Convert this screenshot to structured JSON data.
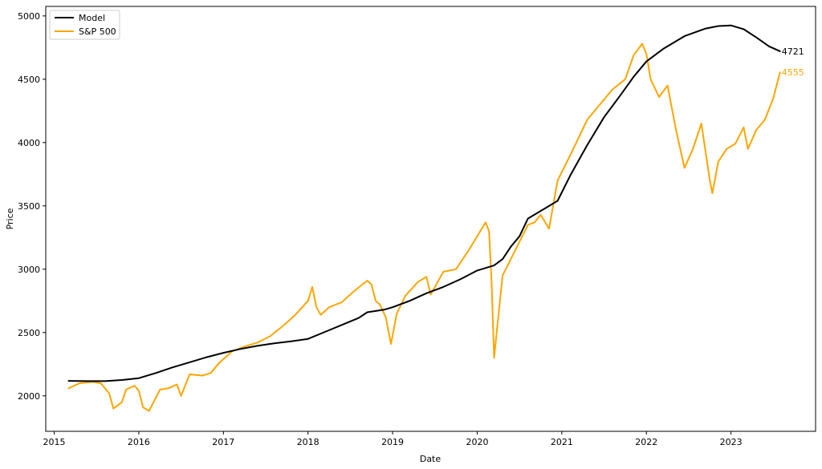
{
  "chart_data": {
    "type": "line",
    "xlabel": "Date",
    "ylabel": "Price",
    "xlim": [
      2014.9,
      2024.0
    ],
    "ylim": [
      1720,
      5075
    ],
    "grid": false,
    "legend_position": "top-left",
    "x_ticks": [
      2015,
      2016,
      2017,
      2018,
      2019,
      2020,
      2021,
      2022,
      2023
    ],
    "x_tick_labels": [
      "2015",
      "2016",
      "2017",
      "2018",
      "2019",
      "2020",
      "2021",
      "2022",
      "2023"
    ],
    "y_ticks": [
      2000,
      2500,
      3000,
      3500,
      4000,
      4500,
      5000
    ],
    "y_tick_labels": [
      "2000",
      "2500",
      "3000",
      "3500",
      "4000",
      "4500",
      "5000"
    ],
    "series": [
      {
        "name": "Model",
        "color": "#000000",
        "end_label": "4721",
        "x": [
          2015.17,
          2015.4,
          2015.6,
          2015.8,
          2016.0,
          2016.2,
          2016.4,
          2016.6,
          2016.8,
          2017.0,
          2017.2,
          2017.4,
          2017.6,
          2017.8,
          2018.0,
          2018.2,
          2018.4,
          2018.6,
          2018.7,
          2018.9,
          2019.0,
          2019.2,
          2019.4,
          2019.6,
          2019.8,
          2020.0,
          2020.2,
          2020.3,
          2020.4,
          2020.5,
          2020.6,
          2020.8,
          2020.95,
          2021.1,
          2021.3,
          2021.5,
          2021.7,
          2021.85,
          2022.0,
          2022.2,
          2022.45,
          2022.7,
          2022.85,
          2023.0,
          2023.15,
          2023.3,
          2023.45,
          2023.58
        ],
        "y": [
          2118,
          2116,
          2116,
          2125,
          2140,
          2180,
          2225,
          2265,
          2305,
          2340,
          2370,
          2395,
          2415,
          2430,
          2450,
          2505,
          2560,
          2615,
          2660,
          2680,
          2700,
          2750,
          2810,
          2860,
          2920,
          2990,
          3030,
          3080,
          3180,
          3260,
          3400,
          3480,
          3540,
          3740,
          3980,
          4200,
          4380,
          4520,
          4640,
          4740,
          4840,
          4900,
          4920,
          4925,
          4895,
          4830,
          4760,
          4721
        ]
      },
      {
        "name": "S&P 500",
        "color": "#FFA500",
        "end_label": "4555",
        "x": [
          2015.17,
          2015.3,
          2015.45,
          2015.55,
          2015.65,
          2015.7,
          2015.8,
          2015.85,
          2015.95,
          2016.0,
          2016.05,
          2016.12,
          2016.25,
          2016.35,
          2016.45,
          2016.5,
          2016.6,
          2016.75,
          2016.85,
          2016.95,
          2017.1,
          2017.25,
          2017.4,
          2017.55,
          2017.7,
          2017.85,
          2018.0,
          2018.05,
          2018.1,
          2018.15,
          2018.25,
          2018.4,
          2018.55,
          2018.7,
          2018.75,
          2018.8,
          2018.85,
          2018.92,
          2018.98,
          2019.05,
          2019.15,
          2019.3,
          2019.4,
          2019.45,
          2019.6,
          2019.75,
          2019.9,
          2020.1,
          2020.14,
          2020.17,
          2020.2,
          2020.23,
          2020.3,
          2020.45,
          2020.6,
          2020.68,
          2020.75,
          2020.85,
          2020.95,
          2021.1,
          2021.3,
          2021.45,
          2021.6,
          2021.75,
          2021.85,
          2021.95,
          2022.0,
          2022.05,
          2022.15,
          2022.25,
          2022.35,
          2022.45,
          2022.55,
          2022.65,
          2022.75,
          2022.78,
          2022.85,
          2022.95,
          2023.05,
          2023.15,
          2023.2,
          2023.3,
          2023.4,
          2023.5,
          2023.58
        ],
        "y": [
          2060,
          2100,
          2110,
          2100,
          2020,
          1900,
          1950,
          2050,
          2080,
          2040,
          1910,
          1880,
          2050,
          2060,
          2090,
          2000,
          2170,
          2160,
          2180,
          2260,
          2350,
          2390,
          2420,
          2470,
          2550,
          2640,
          2750,
          2860,
          2700,
          2640,
          2700,
          2740,
          2830,
          2910,
          2880,
          2750,
          2720,
          2620,
          2410,
          2650,
          2790,
          2900,
          2940,
          2800,
          2980,
          3000,
          3150,
          3370,
          3300,
          2900,
          2300,
          2500,
          2950,
          3150,
          3350,
          3370,
          3430,
          3320,
          3700,
          3900,
          4180,
          4300,
          4420,
          4500,
          4690,
          4780,
          4700,
          4500,
          4360,
          4450,
          4100,
          3800,
          3950,
          4150,
          3700,
          3600,
          3850,
          3950,
          3990,
          4120,
          3950,
          4100,
          4180,
          4350,
          4555
        ]
      }
    ]
  }
}
